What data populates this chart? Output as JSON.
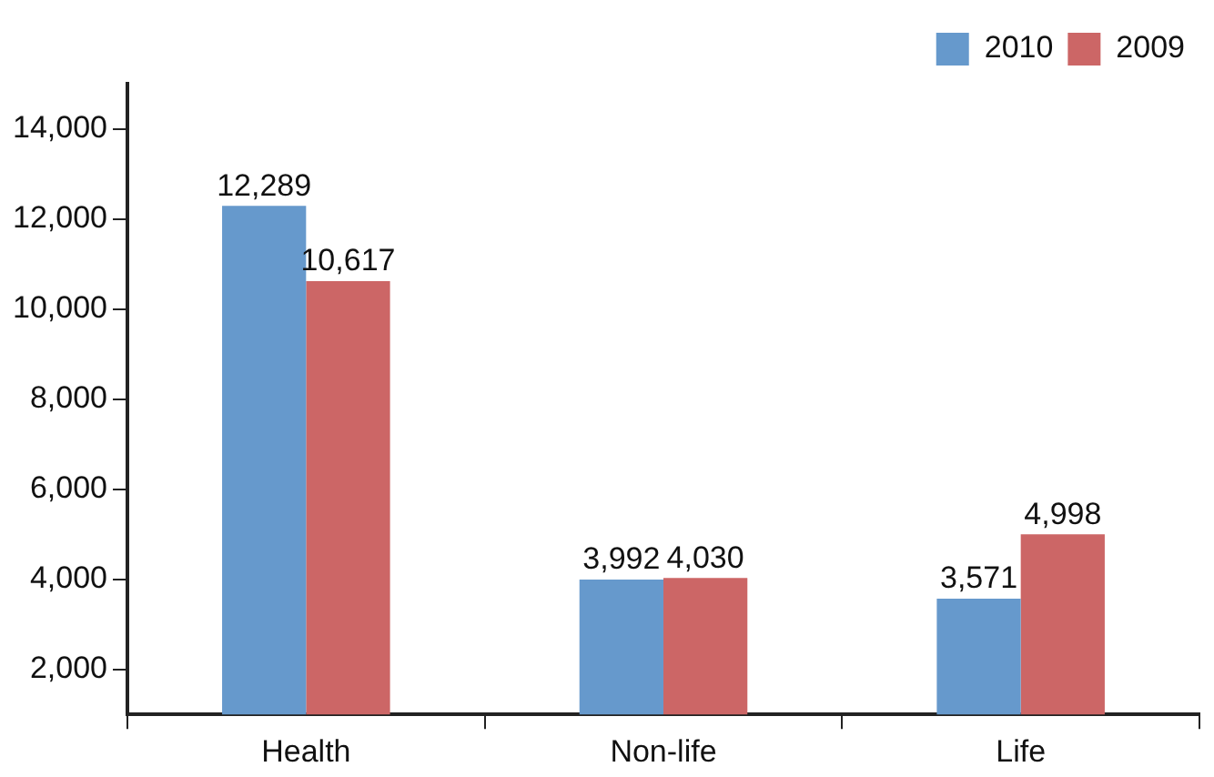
{
  "chart_data": {
    "type": "bar",
    "categories": [
      "Health",
      "Non-life",
      "Life"
    ],
    "series": [
      {
        "name": "2010",
        "color": "#6699cc",
        "values": [
          12289,
          3992,
          3571
        ],
        "value_labels": [
          "12,289",
          "3,992",
          "3,571"
        ]
      },
      {
        "name": "2009",
        "color": "#cc6666",
        "values": [
          10617,
          4030,
          4998
        ],
        "value_labels": [
          "10,617",
          "4,030",
          "4,998"
        ]
      }
    ],
    "ylim": [
      1000,
      15000
    ],
    "yticks": [
      {
        "value": 2000,
        "label": "2,000"
      },
      {
        "value": 4000,
        "label": "4,000"
      },
      {
        "value": 6000,
        "label": "6,000"
      },
      {
        "value": 8000,
        "label": "8,000"
      },
      {
        "value": 10000,
        "label": "10,000"
      },
      {
        "value": 12000,
        "label": "12,000"
      },
      {
        "value": 14000,
        "label": "14,000"
      }
    ],
    "legend": "top right",
    "grid": false
  }
}
